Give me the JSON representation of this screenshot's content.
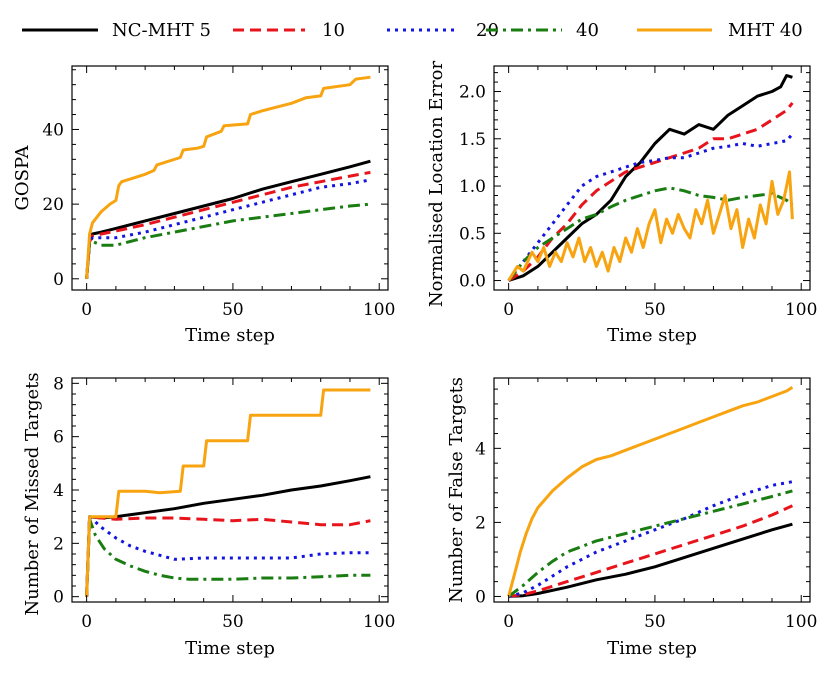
{
  "legend": [
    {
      "label": "NC-MHT 5",
      "color": "#000000",
      "dash": "solid"
    },
    {
      "label": "10",
      "color": "#e8141c",
      "dash": "dashed"
    },
    {
      "label": "20",
      "color": "#1414e0",
      "dash": "dotted"
    },
    {
      "label": "40",
      "color": "#1a7d12",
      "dash": "dashdot"
    },
    {
      "label": "MHT 40",
      "color": "#f8a310",
      "dash": "solid"
    }
  ],
  "chart_data": [
    {
      "type": "line",
      "ylabel": "GOSPA",
      "xlabel": "Time step",
      "xlim": [
        -5,
        103
      ],
      "ylim": [
        -3,
        57
      ],
      "xticks": [
        0,
        50,
        100
      ],
      "yticks": [
        0,
        20,
        40
      ],
      "series": [
        {
          "name": "NC-MHT 5",
          "x": [
            0,
            1,
            2,
            5,
            10,
            20,
            30,
            40,
            50,
            60,
            70,
            80,
            90,
            97
          ],
          "y": [
            0,
            10,
            12,
            12.5,
            13.5,
            15.5,
            17.5,
            19.5,
            21.5,
            24,
            26,
            28,
            30,
            31.5
          ]
        },
        {
          "name": "10",
          "x": [
            0,
            1,
            2,
            5,
            10,
            20,
            30,
            40,
            50,
            60,
            70,
            80,
            90,
            97
          ],
          "y": [
            0,
            10,
            11.5,
            12,
            12.8,
            14.5,
            16.5,
            18.5,
            20.5,
            22.5,
            24.5,
            26,
            27.5,
            28.5
          ]
        },
        {
          "name": "20",
          "x": [
            0,
            1,
            2,
            5,
            10,
            20,
            30,
            40,
            50,
            60,
            70,
            80,
            90,
            97
          ],
          "y": [
            0,
            10,
            11,
            11,
            11,
            12.5,
            14.5,
            16.5,
            18.5,
            20.5,
            22.5,
            24.5,
            25.5,
            26.5
          ]
        },
        {
          "name": "40",
          "x": [
            0,
            1,
            2,
            5,
            10,
            20,
            30,
            40,
            50,
            60,
            70,
            80,
            90,
            97
          ],
          "y": [
            0,
            10,
            10,
            9,
            9,
            11,
            12.5,
            14,
            15.5,
            16.5,
            17.5,
            18.5,
            19.5,
            20
          ]
        },
        {
          "name": "MHT 40",
          "x": [
            0,
            1,
            2,
            5,
            8,
            10,
            11,
            12,
            20,
            23,
            24,
            32,
            33,
            38,
            40,
            41,
            46,
            47,
            55,
            56,
            58,
            60,
            65,
            70,
            75,
            80,
            81,
            90,
            92,
            97
          ],
          "y": [
            0,
            12,
            15,
            18,
            20,
            21,
            25,
            26,
            28,
            29,
            30.5,
            32.5,
            34.5,
            35,
            35.5,
            38,
            39.5,
            41,
            41.5,
            44,
            44.5,
            45,
            46,
            47,
            48.5,
            49,
            51,
            52,
            53.5,
            54
          ]
        }
      ]
    },
    {
      "type": "line",
      "ylabel": "Normalised Location Error",
      "xlabel": "Time step",
      "xlim": [
        -5,
        103
      ],
      "ylim": [
        -0.1,
        2.27
      ],
      "xticks": [
        0,
        50,
        100
      ],
      "yticks": [
        0.0,
        0.5,
        1.0,
        1.5,
        2.0
      ],
      "series": [
        {
          "name": "NC-MHT 5",
          "x": [
            0,
            5,
            10,
            15,
            20,
            25,
            30,
            35,
            40,
            45,
            50,
            55,
            60,
            65,
            70,
            75,
            80,
            85,
            90,
            93,
            95,
            97
          ],
          "y": [
            0,
            0.05,
            0.15,
            0.3,
            0.45,
            0.6,
            0.7,
            0.85,
            1.1,
            1.25,
            1.45,
            1.6,
            1.55,
            1.65,
            1.6,
            1.75,
            1.85,
            1.95,
            2.0,
            2.05,
            2.17,
            2.15
          ]
        },
        {
          "name": "10",
          "x": [
            0,
            5,
            10,
            15,
            20,
            25,
            30,
            35,
            40,
            45,
            50,
            55,
            60,
            65,
            70,
            75,
            80,
            85,
            90,
            95,
            97
          ],
          "y": [
            0,
            0.1,
            0.25,
            0.45,
            0.6,
            0.8,
            0.95,
            1.05,
            1.15,
            1.2,
            1.25,
            1.3,
            1.35,
            1.4,
            1.5,
            1.5,
            1.55,
            1.6,
            1.7,
            1.8,
            1.88
          ]
        },
        {
          "name": "20",
          "x": [
            0,
            5,
            10,
            15,
            20,
            25,
            30,
            35,
            40,
            45,
            50,
            55,
            60,
            65,
            70,
            75,
            80,
            85,
            90,
            95,
            97
          ],
          "y": [
            0,
            0.2,
            0.4,
            0.6,
            0.8,
            1.0,
            1.1,
            1.15,
            1.2,
            1.25,
            1.27,
            1.3,
            1.3,
            1.35,
            1.4,
            1.42,
            1.45,
            1.42,
            1.45,
            1.48,
            1.55
          ]
        },
        {
          "name": "40",
          "x": [
            0,
            5,
            10,
            15,
            20,
            25,
            30,
            35,
            40,
            45,
            50,
            55,
            60,
            65,
            70,
            75,
            80,
            85,
            90,
            95,
            97
          ],
          "y": [
            0,
            0.2,
            0.35,
            0.45,
            0.55,
            0.65,
            0.7,
            0.78,
            0.85,
            0.9,
            0.95,
            0.98,
            0.95,
            0.9,
            0.88,
            0.85,
            0.88,
            0.9,
            0.92,
            0.85,
            0.8
          ]
        },
        {
          "name": "MHT 40",
          "x": [
            0,
            3,
            5,
            8,
            10,
            12,
            14,
            16,
            18,
            20,
            22,
            24,
            26,
            28,
            30,
            32,
            34,
            36,
            38,
            40,
            42,
            44,
            46,
            48,
            50,
            52,
            54,
            56,
            58,
            60,
            62,
            64,
            66,
            68,
            70,
            72,
            74,
            76,
            78,
            80,
            82,
            84,
            86,
            88,
            90,
            92,
            94,
            96,
            97
          ],
          "y": [
            0,
            0.15,
            0.1,
            0.3,
            0.2,
            0.35,
            0.15,
            0.3,
            0.2,
            0.4,
            0.25,
            0.45,
            0.2,
            0.35,
            0.15,
            0.3,
            0.1,
            0.35,
            0.2,
            0.45,
            0.3,
            0.55,
            0.35,
            0.6,
            0.75,
            0.4,
            0.65,
            0.5,
            0.7,
            0.55,
            0.45,
            0.75,
            0.6,
            0.85,
            0.5,
            0.7,
            0.9,
            0.55,
            0.75,
            0.35,
            0.65,
            0.45,
            0.8,
            0.6,
            1.05,
            0.7,
            0.85,
            1.15,
            0.65
          ]
        }
      ]
    },
    {
      "type": "line",
      "ylabel": "Number of Missed Targets",
      "xlabel": "Time step",
      "xlim": [
        -5,
        103
      ],
      "ylim": [
        -0.2,
        8.2
      ],
      "xticks": [
        0,
        50,
        100
      ],
      "yticks": [
        0,
        2,
        4,
        6,
        8
      ],
      "series": [
        {
          "name": "NC-MHT 5",
          "x": [
            0,
            1,
            5,
            10,
            20,
            30,
            40,
            50,
            60,
            70,
            80,
            90,
            97
          ],
          "y": [
            0,
            3,
            2.95,
            3.0,
            3.15,
            3.3,
            3.5,
            3.65,
            3.8,
            4.0,
            4.15,
            4.35,
            4.5
          ]
        },
        {
          "name": "10",
          "x": [
            0,
            1,
            5,
            10,
            20,
            30,
            40,
            50,
            60,
            70,
            80,
            90,
            97
          ],
          "y": [
            0,
            3,
            2.95,
            2.9,
            2.95,
            2.95,
            2.9,
            2.85,
            2.9,
            2.8,
            2.7,
            2.7,
            2.85
          ]
        },
        {
          "name": "20",
          "x": [
            0,
            1,
            5,
            10,
            15,
            20,
            25,
            30,
            40,
            50,
            60,
            70,
            80,
            90,
            97
          ],
          "y": [
            0,
            3,
            2.6,
            2.2,
            1.9,
            1.7,
            1.55,
            1.4,
            1.45,
            1.45,
            1.45,
            1.45,
            1.6,
            1.65,
            1.65
          ]
        },
        {
          "name": "40",
          "x": [
            0,
            1,
            3,
            6,
            10,
            15,
            20,
            25,
            30,
            35,
            40,
            50,
            60,
            70,
            80,
            90,
            97
          ],
          "y": [
            0,
            2.9,
            2.3,
            1.8,
            1.4,
            1.15,
            0.95,
            0.8,
            0.7,
            0.65,
            0.65,
            0.65,
            0.7,
            0.7,
            0.75,
            0.8,
            0.8
          ]
        },
        {
          "name": "MHT 40",
          "x": [
            0,
            1,
            10,
            11,
            20,
            25,
            32,
            33,
            40,
            41,
            55,
            56,
            80,
            81,
            90,
            97
          ],
          "y": [
            0,
            3.0,
            3.0,
            3.95,
            3.95,
            3.9,
            3.95,
            4.9,
            4.9,
            5.85,
            5.85,
            6.8,
            6.8,
            7.75,
            7.75,
            7.75
          ]
        }
      ]
    },
    {
      "type": "line",
      "ylabel": "Number of False Targets",
      "xlabel": "Time step",
      "xlim": [
        -5,
        103
      ],
      "ylim": [
        -0.15,
        5.9
      ],
      "xticks": [
        0,
        50,
        100
      ],
      "yticks": [
        0,
        2,
        4
      ],
      "series": [
        {
          "name": "NC-MHT 5",
          "x": [
            0,
            5,
            10,
            20,
            30,
            40,
            50,
            60,
            70,
            80,
            90,
            97
          ],
          "y": [
            0,
            0.02,
            0.08,
            0.25,
            0.45,
            0.6,
            0.8,
            1.05,
            1.3,
            1.55,
            1.8,
            1.95
          ]
        },
        {
          "name": "10",
          "x": [
            0,
            5,
            10,
            20,
            30,
            40,
            50,
            60,
            70,
            80,
            90,
            97
          ],
          "y": [
            0,
            0.05,
            0.15,
            0.4,
            0.65,
            0.9,
            1.15,
            1.4,
            1.65,
            1.9,
            2.2,
            2.45
          ]
        },
        {
          "name": "20",
          "x": [
            0,
            5,
            10,
            15,
            20,
            25,
            30,
            40,
            50,
            60,
            70,
            80,
            90,
            97
          ],
          "y": [
            0,
            0.1,
            0.3,
            0.55,
            0.8,
            1.0,
            1.2,
            1.5,
            1.8,
            2.1,
            2.45,
            2.75,
            3.0,
            3.1
          ]
        },
        {
          "name": "40",
          "x": [
            0,
            5,
            10,
            15,
            20,
            25,
            30,
            40,
            50,
            60,
            70,
            80,
            90,
            97
          ],
          "y": [
            0,
            0.3,
            0.65,
            0.95,
            1.2,
            1.35,
            1.5,
            1.7,
            1.9,
            2.1,
            2.3,
            2.5,
            2.7,
            2.85
          ]
        },
        {
          "name": "MHT 40",
          "x": [
            0,
            2,
            4,
            6,
            8,
            10,
            15,
            20,
            25,
            30,
            35,
            40,
            45,
            50,
            55,
            60,
            65,
            70,
            75,
            80,
            85,
            90,
            95,
            97
          ],
          "y": [
            0,
            0.6,
            1.2,
            1.7,
            2.1,
            2.4,
            2.85,
            3.2,
            3.5,
            3.7,
            3.8,
            3.95,
            4.1,
            4.25,
            4.4,
            4.55,
            4.7,
            4.85,
            5.0,
            5.15,
            5.25,
            5.4,
            5.55,
            5.65
          ]
        }
      ]
    }
  ]
}
